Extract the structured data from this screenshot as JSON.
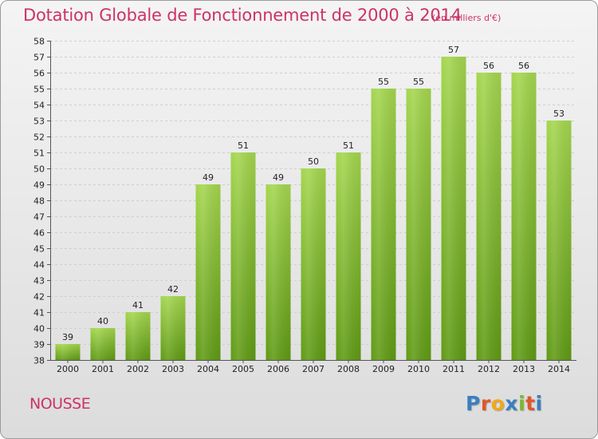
{
  "header": {
    "title": "Dotation Globale de Fonctionnement de 2000 à 2014",
    "unit": "(en milliers d'€)"
  },
  "footer": {
    "commune": "NOUSSE",
    "logo_letters": [
      "P",
      "r",
      "o",
      "x",
      "i",
      "t",
      "i"
    ],
    "logo_colors": [
      "#3a7fc1",
      "#e0572b",
      "#f2a71b",
      "#3a7fc1",
      "#7cb82f",
      "#e0572b",
      "#3a7fc1"
    ]
  },
  "colors": {
    "bar_light": "#a4d64e",
    "bar_dark": "#5f9a14",
    "grid": "#cfcfcf"
  },
  "chart_data": {
    "type": "bar",
    "title": "Dotation Globale de Fonctionnement de 2000 à 2014",
    "subtitle": "(en milliers d'€)",
    "xlabel": "",
    "ylabel": "",
    "categories": [
      "2000",
      "2001",
      "2002",
      "2003",
      "2004",
      "2005",
      "2006",
      "2007",
      "2008",
      "2009",
      "2010",
      "2011",
      "2012",
      "2013",
      "2014"
    ],
    "values": [
      39,
      40,
      41,
      42,
      49,
      51,
      49,
      50,
      51,
      55,
      55,
      57,
      56,
      56,
      53
    ],
    "ylim": [
      38,
      58
    ],
    "yticks": [
      38,
      39,
      40,
      41,
      42,
      43,
      44,
      45,
      46,
      47,
      48,
      49,
      50,
      51,
      52,
      53,
      54,
      55,
      56,
      57,
      58
    ],
    "grid": true,
    "legend": "none"
  }
}
